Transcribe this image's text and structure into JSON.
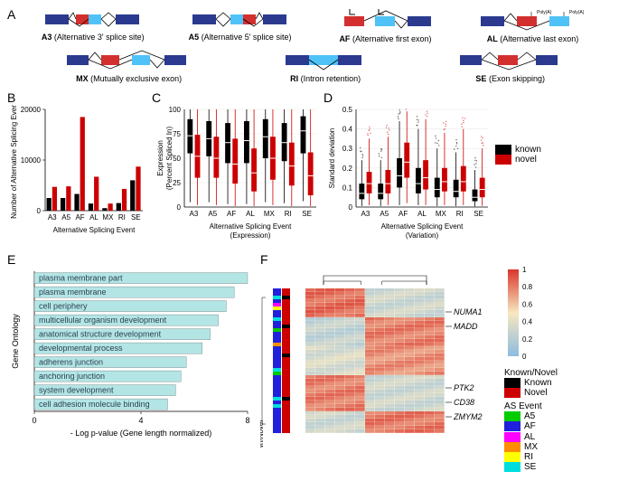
{
  "colors": {
    "darkblue": "#2b3a8f",
    "red": "#d32f2f",
    "lightblue": "#4fc3f7",
    "black": "#000000",
    "novel_red": "#cc0000",
    "go_bar": "#b3e5e5",
    "heatmap_high": "#d9362a",
    "heatmap_mid": "#f7c34a",
    "heatmap_low": "#8dbce0",
    "grid": "#e0e0e0"
  },
  "panelA": {
    "label": "A",
    "events": [
      {
        "code": "A3",
        "desc": "(Alternative 3' splice site)"
      },
      {
        "code": "A5",
        "desc": "(Alternative 5' splice site)"
      },
      {
        "code": "AF",
        "desc": "(Alternative first exon)"
      },
      {
        "code": "AL",
        "desc": "(Alternative last exon)"
      },
      {
        "code": "MX",
        "desc": "(Mutually exclusive exon)"
      },
      {
        "code": "RI",
        "desc": "(Intron retention)"
      },
      {
        "code": "SE",
        "desc": "(Exon skipping)"
      }
    ]
  },
  "panelB": {
    "label": "B",
    "ylabel": "Number of Alternative Splicing Event",
    "xlabel": "Alternative Splicing Event",
    "ylim": [
      0,
      20000
    ],
    "yticks": [
      0,
      10000,
      20000
    ],
    "categories": [
      "A3",
      "A5",
      "AF",
      "AL",
      "MX",
      "RI",
      "SE"
    ],
    "known": [
      2500,
      2500,
      3300,
      1400,
      500,
      1500,
      6000
    ],
    "novel": [
      4700,
      4800,
      18500,
      6700,
      1400,
      4300,
      8700
    ],
    "colors": {
      "known": "#000000",
      "novel": "#cc0000"
    }
  },
  "panelC": {
    "label": "C",
    "ylabel": "Expression (Percent Spliced In)",
    "xlabel": "Alternative Splicing Event (Expression)",
    "ylim": [
      0,
      100
    ],
    "yticks": [
      0,
      25,
      50,
      75,
      100
    ],
    "categories": [
      "A3",
      "A5",
      "AF",
      "AL",
      "MX",
      "RI",
      "SE"
    ],
    "known": [
      {
        "q1": 55,
        "med": 73,
        "q3": 90,
        "lo": 5,
        "hi": 100
      },
      {
        "q1": 52,
        "med": 70,
        "q3": 88,
        "lo": 5,
        "hi": 100
      },
      {
        "q1": 45,
        "med": 66,
        "q3": 86,
        "lo": 3,
        "hi": 100
      },
      {
        "q1": 45,
        "med": 68,
        "q3": 88,
        "lo": 3,
        "hi": 100
      },
      {
        "q1": 50,
        "med": 72,
        "q3": 90,
        "lo": 5,
        "hi": 100
      },
      {
        "q1": 47,
        "med": 66,
        "q3": 86,
        "lo": 4,
        "hi": 100
      },
      {
        "q1": 55,
        "med": 78,
        "q3": 93,
        "lo": 6,
        "hi": 100
      }
    ],
    "novel": [
      {
        "q1": 30,
        "med": 52,
        "q3": 74,
        "lo": 2,
        "hi": 100
      },
      {
        "q1": 30,
        "med": 50,
        "q3": 72,
        "lo": 2,
        "hi": 100
      },
      {
        "q1": 24,
        "med": 44,
        "q3": 70,
        "lo": 1,
        "hi": 100
      },
      {
        "q1": 16,
        "med": 35,
        "q3": 60,
        "lo": 1,
        "hi": 100
      },
      {
        "q1": 28,
        "med": 50,
        "q3": 72,
        "lo": 2,
        "hi": 100
      },
      {
        "q1": 22,
        "med": 42,
        "q3": 66,
        "lo": 1,
        "hi": 100
      },
      {
        "q1": 12,
        "med": 32,
        "q3": 56,
        "lo": 1,
        "hi": 100
      }
    ],
    "colors": {
      "known": "#000000",
      "novel": "#cc0000"
    }
  },
  "panelD": {
    "label": "D",
    "ylabel": "Standard deviation",
    "xlabel": "Alternative Splicing Event (Variation)",
    "ylim": [
      0,
      0.5
    ],
    "yticks": [
      0,
      0.1,
      0.2,
      0.3,
      0.4,
      0.5
    ],
    "categories": [
      "A3",
      "A5",
      "AF",
      "AL",
      "MX",
      "RI",
      "SE"
    ],
    "known": [
      {
        "q1": 0.04,
        "med": 0.07,
        "q3": 0.12,
        "lo": 0.005,
        "hi": 0.24
      },
      {
        "q1": 0.04,
        "med": 0.07,
        "q3": 0.12,
        "lo": 0.005,
        "hi": 0.24
      },
      {
        "q1": 0.1,
        "med": 0.16,
        "q3": 0.25,
        "lo": 0.01,
        "hi": 0.44
      },
      {
        "q1": 0.07,
        "med": 0.12,
        "q3": 0.2,
        "lo": 0.01,
        "hi": 0.4
      },
      {
        "q1": 0.05,
        "med": 0.09,
        "q3": 0.15,
        "lo": 0.005,
        "hi": 0.3
      },
      {
        "q1": 0.05,
        "med": 0.08,
        "q3": 0.14,
        "lo": 0.005,
        "hi": 0.28
      },
      {
        "q1": 0.03,
        "med": 0.05,
        "q3": 0.09,
        "lo": 0.003,
        "hi": 0.19
      }
    ],
    "novel": [
      {
        "q1": 0.07,
        "med": 0.12,
        "q3": 0.18,
        "lo": 0.01,
        "hi": 0.35
      },
      {
        "q1": 0.07,
        "med": 0.12,
        "q3": 0.19,
        "lo": 0.01,
        "hi": 0.36
      },
      {
        "q1": 0.15,
        "med": 0.23,
        "q3": 0.33,
        "lo": 0.02,
        "hi": 0.49
      },
      {
        "q1": 0.09,
        "med": 0.15,
        "q3": 0.24,
        "lo": 0.01,
        "hi": 0.45
      },
      {
        "q1": 0.08,
        "med": 0.13,
        "q3": 0.2,
        "lo": 0.01,
        "hi": 0.38
      },
      {
        "q1": 0.08,
        "med": 0.13,
        "q3": 0.21,
        "lo": 0.01,
        "hi": 0.4
      },
      {
        "q1": 0.05,
        "med": 0.09,
        "q3": 0.15,
        "lo": 0.006,
        "hi": 0.3
      }
    ],
    "colors": {
      "known": "#000000",
      "novel": "#cc0000"
    }
  },
  "legendCD": {
    "items": [
      {
        "label": "known",
        "color": "#000000"
      },
      {
        "label": "novel",
        "color": "#cc0000"
      }
    ]
  },
  "panelE": {
    "label": "E",
    "ylabel": "Gene Ontology",
    "xlabel": "- Log p-value (Gene length normalized)",
    "xlim": [
      0,
      8.0
    ],
    "xticks": [
      0,
      4.0,
      8.0
    ],
    "terms": [
      {
        "name": "plasma membrane part",
        "val": 8.0
      },
      {
        "name": "plasma membrane",
        "val": 7.5
      },
      {
        "name": "cell periphery",
        "val": 7.2
      },
      {
        "name": "multicellular organism development",
        "val": 6.9
      },
      {
        "name": "anatomical structure development",
        "val": 6.6
      },
      {
        "name": "developmental process",
        "val": 6.3
      },
      {
        "name": "adherens junction",
        "val": 5.7
      },
      {
        "name": "anchoring junction",
        "val": 5.5
      },
      {
        "name": "system development",
        "val": 5.3
      },
      {
        "name": "cell adhesion molecule binding",
        "val": 5.0
      }
    ],
    "bar_color": "#b3e5e5"
  },
  "panelF": {
    "label": "F",
    "left_labels": [
      "AS Event",
      "Known/Novel"
    ],
    "annotations": [
      "NUMA1",
      "MADD",
      "PTK2",
      "CD38",
      "ZMYM2"
    ],
    "color_scale": {
      "min": 0,
      "max": 1,
      "ticks": [
        0,
        0.2,
        0.4,
        0.6,
        0.8,
        1
      ]
    },
    "legends": {
      "known_novel": {
        "title": "Known/Novel",
        "items": [
          {
            "label": "Known",
            "color": "#000000"
          },
          {
            "label": "Novel",
            "color": "#cc0000"
          }
        ]
      },
      "as_event": {
        "title": "AS Event",
        "items": [
          {
            "label": "A5",
            "color": "#00cc00"
          },
          {
            "label": "AF",
            "color": "#2020dd"
          },
          {
            "label": "AL",
            "color": "#ff00ff"
          },
          {
            "label": "MX",
            "color": "#ff8c00"
          },
          {
            "label": "RI",
            "color": "#ffff00"
          },
          {
            "label": "SE",
            "color": "#00dddd"
          }
        ]
      }
    },
    "rows": 40,
    "cols": 14,
    "as_event_column": [
      "AF",
      "AF",
      "SE",
      "AF",
      "AL",
      "RI",
      "AF",
      "AF",
      "SE",
      "AF",
      "AF",
      "A5",
      "AF",
      "AF",
      "AF",
      "MX",
      "AF",
      "AF",
      "AF",
      "AF",
      "AF",
      "AF",
      "SE",
      "A5",
      "AF",
      "AF",
      "AF",
      "AF",
      "AF",
      "AF",
      "SE",
      "AF",
      "SE",
      "AF",
      "AF",
      "AF",
      "AF",
      "AF",
      "AF",
      "AF"
    ],
    "known_novel_column": [
      "Novel",
      "Novel",
      "Known",
      "Novel",
      "Novel",
      "Novel",
      "Novel",
      "Novel",
      "Novel",
      "Novel",
      "Known",
      "Novel",
      "Novel",
      "Novel",
      "Novel",
      "Novel",
      "Novel",
      "Novel",
      "Known",
      "Novel",
      "Novel",
      "Novel",
      "Novel",
      "Novel",
      "Novel",
      "Novel",
      "Novel",
      "Novel",
      "Novel",
      "Novel",
      "Known",
      "Novel",
      "Novel",
      "Novel",
      "Novel",
      "Novel",
      "Novel",
      "Novel",
      "Novel",
      "Novel"
    ],
    "annotation_rows": {
      "NUMA1": 6,
      "MADD": 10,
      "PTK2": 27,
      "CD38": 31,
      "ZMYM2": 35
    },
    "heatmap_cols_groups": [
      {
        "cols": [
          0,
          1,
          2,
          3,
          4,
          5
        ],
        "pattern": "A"
      },
      {
        "cols": [
          6,
          7,
          8,
          9,
          10,
          11,
          12,
          13
        ],
        "pattern": "B"
      }
    ]
  }
}
